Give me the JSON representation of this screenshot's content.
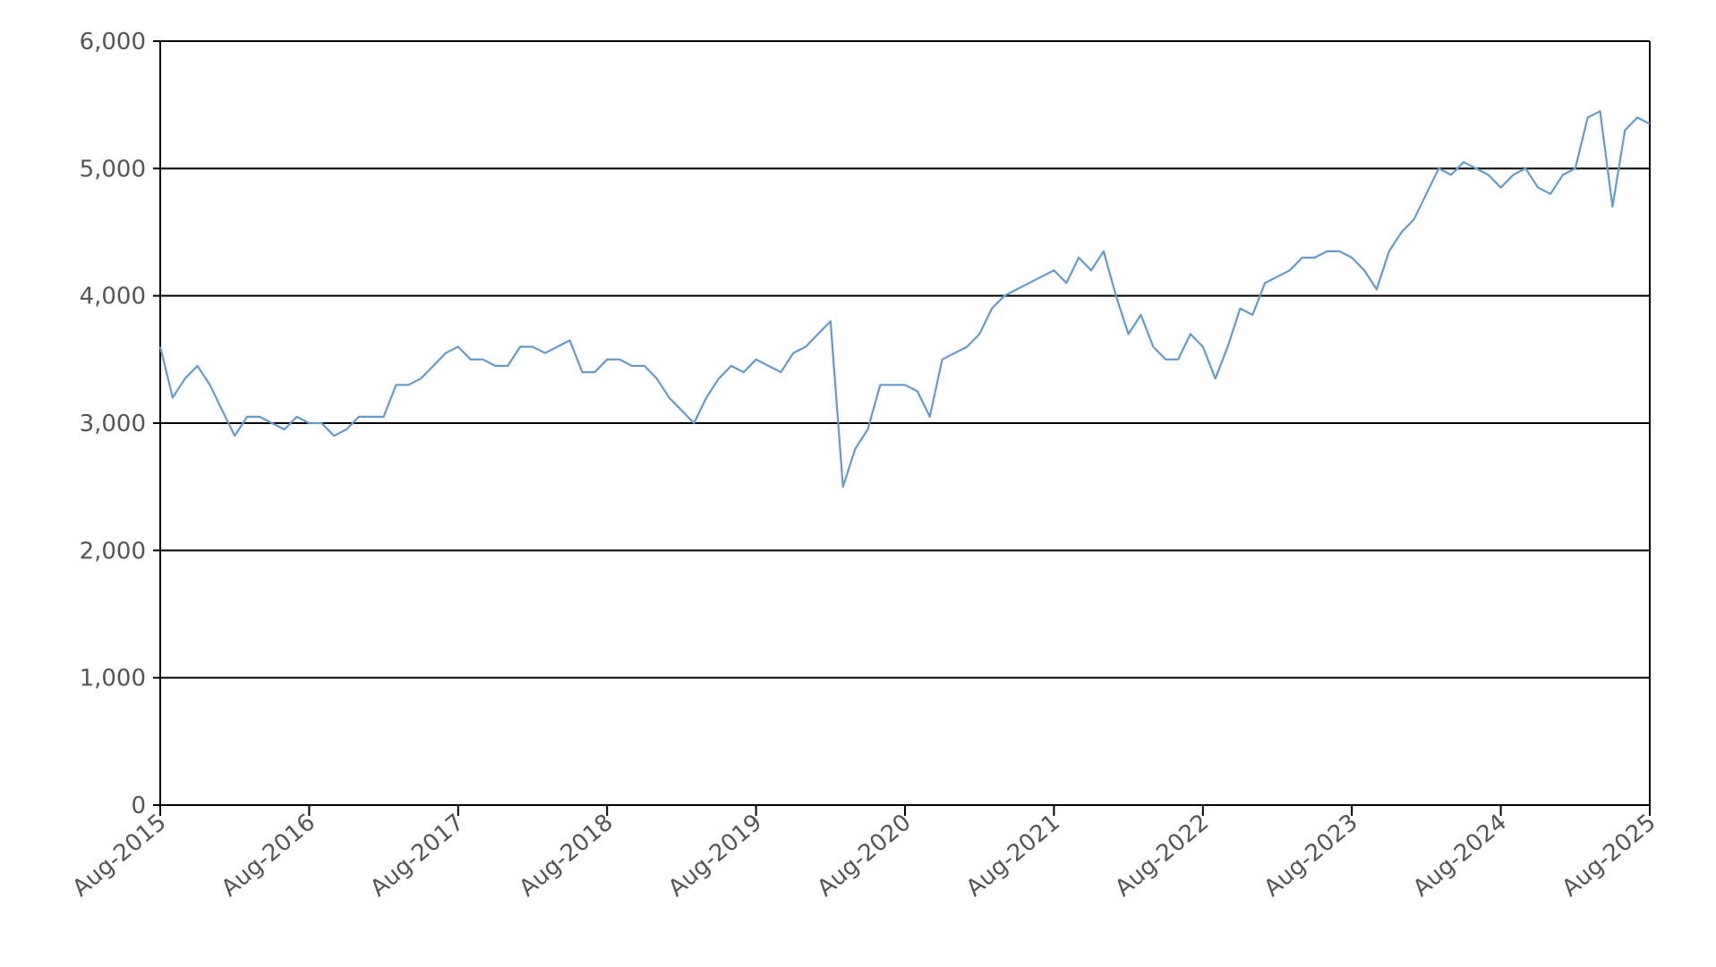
{
  "chart_data": {
    "type": "line",
    "x": [
      "2015-08",
      "2015-09",
      "2015-10",
      "2015-11",
      "2015-12",
      "2016-01",
      "2016-02",
      "2016-03",
      "2016-04",
      "2016-05",
      "2016-06",
      "2016-07",
      "2016-08",
      "2016-09",
      "2016-10",
      "2016-11",
      "2016-12",
      "2017-01",
      "2017-02",
      "2017-03",
      "2017-04",
      "2017-05",
      "2017-06",
      "2017-07",
      "2017-08",
      "2017-09",
      "2017-10",
      "2017-11",
      "2017-12",
      "2018-01",
      "2018-02",
      "2018-03",
      "2018-04",
      "2018-05",
      "2018-06",
      "2018-07",
      "2018-08",
      "2018-09",
      "2018-10",
      "2018-11",
      "2018-12",
      "2019-01",
      "2019-02",
      "2019-03",
      "2019-04",
      "2019-05",
      "2019-06",
      "2019-07",
      "2019-08",
      "2019-09",
      "2019-10",
      "2019-11",
      "2019-12",
      "2020-01",
      "2020-02",
      "2020-03",
      "2020-04",
      "2020-05",
      "2020-06",
      "2020-07",
      "2020-08",
      "2020-09",
      "2020-10",
      "2020-11",
      "2020-12",
      "2021-01",
      "2021-02",
      "2021-03",
      "2021-04",
      "2021-05",
      "2021-06",
      "2021-07",
      "2021-08",
      "2021-09",
      "2021-10",
      "2021-11",
      "2021-12",
      "2022-01",
      "2022-02",
      "2022-03",
      "2022-04",
      "2022-05",
      "2022-06",
      "2022-07",
      "2022-08",
      "2022-09",
      "2022-10",
      "2022-11",
      "2022-12",
      "2023-01",
      "2023-02",
      "2023-03",
      "2023-04",
      "2023-05",
      "2023-06",
      "2023-07",
      "2023-08",
      "2023-09",
      "2023-10",
      "2023-11",
      "2023-12",
      "2024-01",
      "2024-02",
      "2024-03",
      "2024-04",
      "2024-05",
      "2024-06",
      "2024-07",
      "2024-08",
      "2024-09",
      "2024-10",
      "2024-11",
      "2024-12",
      "2025-01",
      "2025-02",
      "2025-03",
      "2025-04",
      "2025-05",
      "2025-06",
      "2025-07",
      "2025-08"
    ],
    "series": [
      {
        "color": "#6699cc",
        "values": [
          3600,
          3200,
          3350,
          3450,
          3300,
          3100,
          2900,
          3050,
          3050,
          3000,
          2950,
          3050,
          3000,
          3000,
          2900,
          2950,
          3050,
          3050,
          3050,
          3300,
          3300,
          3350,
          3450,
          3550,
          3600,
          3500,
          3500,
          3450,
          3450,
          3600,
          3600,
          3550,
          3600,
          3650,
          3400,
          3400,
          3500,
          3500,
          3450,
          3450,
          3350,
          3200,
          3100,
          3000,
          3200,
          3350,
          3450,
          3400,
          3500,
          3450,
          3400,
          3550,
          3600,
          3700,
          3800,
          2500,
          2800,
          2950,
          3300,
          3300,
          3300,
          3250,
          3050,
          3500,
          3550,
          3600,
          3700,
          3900,
          4000,
          4050,
          4100,
          4150,
          4200,
          4100,
          4300,
          4200,
          4350,
          4000,
          3700,
          3850,
          3600,
          3500,
          3500,
          3700,
          3600,
          3350,
          3600,
          3900,
          3850,
          4100,
          4150,
          4200,
          4300,
          4300,
          4350,
          4350,
          4300,
          4200,
          4050,
          4350,
          4500,
          4600,
          4800,
          5000,
          4950,
          5050,
          5000,
          4950,
          4850,
          4950,
          5000,
          4850,
          4800,
          4950,
          5000,
          5400,
          5450,
          4700,
          5300,
          5400,
          5350
        ]
      }
    ],
    "xlim": [
      "2015-08",
      "2025-08"
    ],
    "xticks": [
      {
        "value": "2015-08",
        "label": "Aug-2015"
      },
      {
        "value": "2016-08",
        "label": "Aug-2016"
      },
      {
        "value": "2017-08",
        "label": "Aug-2017"
      },
      {
        "value": "2018-08",
        "label": "Aug-2018"
      },
      {
        "value": "2019-08",
        "label": "Aug-2019"
      },
      {
        "value": "2020-08",
        "label": "Aug-2020"
      },
      {
        "value": "2021-08",
        "label": "Aug-2021"
      },
      {
        "value": "2022-08",
        "label": "Aug-2022"
      },
      {
        "value": "2023-08",
        "label": "Aug-2023"
      },
      {
        "value": "2024-08",
        "label": "Aug-2024"
      },
      {
        "value": "2025-08",
        "label": "Aug-2025"
      }
    ],
    "ylim": [
      0,
      6000
    ],
    "yticks": [
      0,
      {
        "value": 1000,
        "label": "1,000"
      },
      {
        "value": 2000,
        "label": "2,000"
      },
      {
        "value": 3000,
        "label": "3,000"
      },
      {
        "value": 4000,
        "label": "4,000"
      },
      {
        "value": 5000,
        "label": "5,000"
      },
      {
        "value": 6000,
        "label": "6,000"
      }
    ],
    "grid": true
  }
}
